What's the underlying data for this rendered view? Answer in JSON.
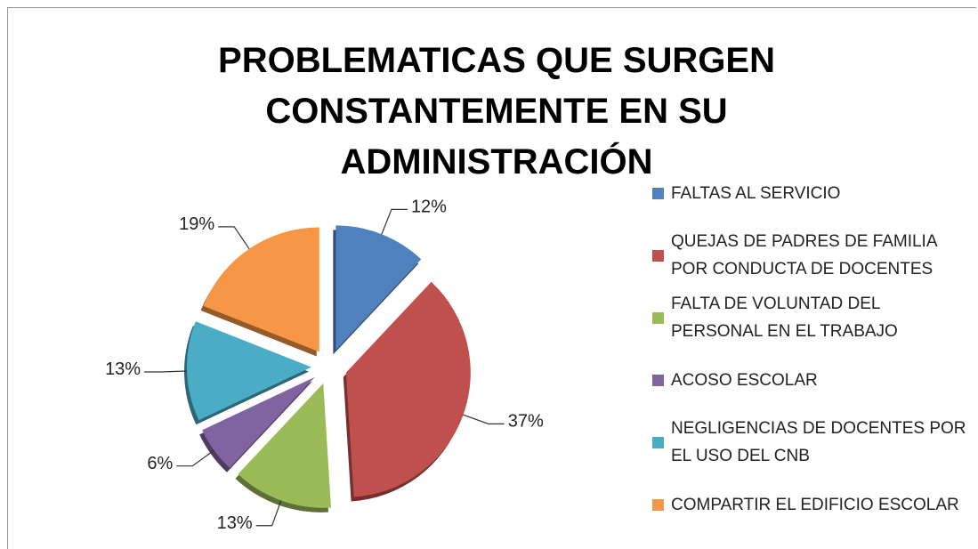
{
  "chart_data": {
    "type": "pie",
    "title": "PROBLEMATICAS QUE SURGEN CONSTANTEMENTE EN SU ADMINISTRACIÓN",
    "categories": [
      "FALTAS AL SERVICIO",
      "QUEJAS DE PADRES DE FAMILIA POR CONDUCTA DE DOCENTES",
      "FALTA DE VOLUNTAD DEL PERSONAL EN EL TRABAJO",
      "ACOSO ESCOLAR",
      "NEGLIGENCIAS DE DOCENTES POR EL USO DEL CNB",
      "COMPARTIR EL EDIFICIO ESCOLAR"
    ],
    "values": [
      12,
      37,
      13,
      6,
      13,
      19
    ],
    "value_labels": [
      "12%",
      "37%",
      "13%",
      "6%",
      "13%",
      "19%"
    ],
    "colors": [
      "#4f81bd",
      "#c0504d",
      "#9bbb59",
      "#8064a2",
      "#4bacc6",
      "#f79646"
    ],
    "legend": "right"
  }
}
